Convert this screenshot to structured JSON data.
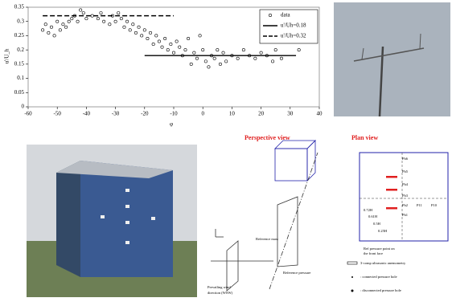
{
  "chart_data": {
    "type": "scatter",
    "y_label": "u'/U_h",
    "x_label": "φ",
    "xlim": [
      -60,
      40
    ],
    "xticks": [
      -60,
      -50,
      -40,
      -30,
      -20,
      -10,
      0,
      10,
      20,
      30,
      40
    ],
    "ylim": [
      0,
      0.35
    ],
    "yticks": [
      0,
      0.05,
      0.1,
      0.15,
      0.2,
      0.25,
      0.3,
      0.35
    ],
    "legend": "upper right",
    "series": [
      {
        "name": "data",
        "color": "#000000",
        "style": "marker",
        "x": [
          -55,
          -54,
          -53,
          -52,
          -51,
          -50,
          -49,
          -48,
          -47,
          -46,
          -45,
          -44,
          -43,
          -42,
          -41,
          -40,
          -38,
          -36,
          -35,
          -34,
          -32,
          -31,
          -30,
          -29,
          -28,
          -27,
          -26,
          -25,
          -24,
          -23,
          -22,
          -21,
          -20,
          -19,
          -18,
          -17,
          -16,
          -15,
          -14,
          -13,
          -12,
          -11,
          -10,
          -9,
          -8,
          -7,
          -6,
          -5,
          -4,
          -3,
          -2,
          -1,
          0,
          1,
          2,
          3,
          4,
          5,
          6,
          7,
          8,
          10,
          12,
          14,
          16,
          18,
          20,
          22,
          24,
          25,
          27,
          33
        ],
        "values": [
          0.27,
          0.29,
          0.26,
          0.28,
          0.25,
          0.3,
          0.27,
          0.29,
          0.28,
          0.3,
          0.31,
          0.32,
          0.3,
          0.34,
          0.33,
          0.31,
          0.32,
          0.31,
          0.33,
          0.3,
          0.29,
          0.32,
          0.3,
          0.33,
          0.31,
          0.28,
          0.3,
          0.27,
          0.29,
          0.26,
          0.28,
          0.25,
          0.27,
          0.24,
          0.26,
          0.22,
          0.25,
          0.23,
          0.21,
          0.24,
          0.2,
          0.22,
          0.19,
          0.23,
          0.21,
          0.18,
          0.2,
          0.24,
          0.15,
          0.19,
          0.17,
          0.25,
          0.2,
          0.16,
          0.14,
          0.18,
          0.17,
          0.2,
          0.15,
          0.19,
          0.16,
          0.18,
          0.17,
          0.2,
          0.18,
          0.17,
          0.19,
          0.18,
          0.16,
          0.2,
          0.17,
          0.2
        ]
      },
      {
        "name": "u'/Uh=0.18",
        "color": "#000000",
        "style": "solid",
        "x": [
          -20,
          32
        ],
        "values": [
          0.18,
          0.18
        ]
      },
      {
        "name": "u'/Uh=0.32",
        "color": "#000000",
        "style": "dashed",
        "x": [
          -55,
          -10
        ],
        "values": [
          0.32,
          0.32
        ]
      }
    ]
  },
  "perspective": {
    "title": "Perspective view",
    "mast": "Reference mast",
    "pressure": "Reference pressure",
    "wind": [
      "Prevailing wind",
      "direction (WSW)"
    ]
  },
  "plan": {
    "title": "Plan view",
    "heights": [
      "0.72H",
      "0.61H",
      "0.5H",
      "0.25H"
    ],
    "points": [
      "Ph6",
      "Ph5",
      "Ph4",
      "Ph3",
      "Ph2",
      "Ph1",
      "P11",
      "P10"
    ],
    "ref": [
      "Ref pressure point on",
      "the front face"
    ],
    "legend": [
      "3-comp ultrasonic anemometry",
      ": connected pressure hole",
      ": disconnected pressure hole"
    ]
  }
}
